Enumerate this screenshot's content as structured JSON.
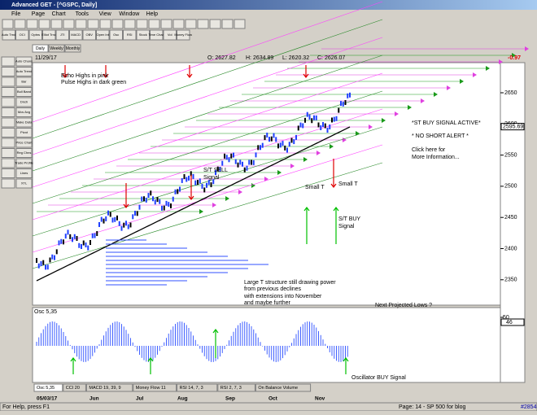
{
  "window": {
    "title": "Advanced GET - [^GSPC, Daily]"
  },
  "menu": [
    "File",
    "Page",
    "Chart",
    "Tools",
    "View",
    "Window",
    "Help"
  ],
  "toolbar": [
    "Auto Trnd",
    "OCI",
    "Optns",
    "Elliot Trnd",
    "JTI",
    "MACD",
    "OBV",
    "Open Int",
    "Osc",
    "RSI",
    "Stock",
    "Time Chart",
    "Vol",
    "Money Flow"
  ],
  "sidebar": [
    "Auto Chans",
    "Auto Trend",
    "Bar",
    "Bull Band",
    "Dnch",
    "Mov Avg",
    "Make Data",
    "Pivot",
    "Price Chart",
    "Reg Chns",
    "Trade Profile",
    "Lines",
    "XTL"
  ],
  "period_tabs": [
    "Daily",
    "Weekly",
    "Monthly"
  ],
  "header": {
    "date": "11/29/17",
    "open": "O: 2627.82",
    "high": "H: 2634.89",
    "low": "L: 2620.32",
    "close": "C: 2626.07",
    "change": "-0.97"
  },
  "price_axis": {
    "ticks": [
      2650,
      2600,
      2550,
      2500,
      2450,
      2400,
      2350
    ],
    "last": 2595.69
  },
  "annotations": {
    "echo": "Echo Highs in pink",
    "pulse": "Pulse Highs in dark green",
    "st_buy_active": "*ST BUY SIGNAL ACTIVE*",
    "no_short": "* NO SHORT ALERT *",
    "click": "Click here for",
    "more": "More Information...",
    "sell1": "S/T SELL",
    "sell2": "Signal",
    "small_t1": "Small  T",
    "small_t2": "Small T",
    "buy1": "S/T BUY",
    "buy2": "Signal",
    "large1": "Large T structure still drawing power",
    "large2": "from previous declines",
    "large3": "with extensions into November",
    "large4": "and maybe further",
    "next_lows": "Next Projected Lows ?",
    "osc_buy": "Oscillator BUY Signal"
  },
  "oscillator": {
    "title": "Osc 5,35",
    "ticks": [
      50
    ],
    "last": 46
  },
  "indicator_tabs": [
    "Osc 5,35",
    "CCI 20",
    "MACD 19, 39, 9",
    "Money Flow 11",
    "RSI 14, 7, 3",
    "RSI 2, 7, 3",
    "On Balance Volume"
  ],
  "dates": [
    "05/03/17",
    "Jun",
    "Jul",
    "Aug",
    "Sep",
    "Oct",
    "Nov"
  ],
  "status": {
    "help": "For Help, press F1",
    "page": "Page: 14 - SP 500 for blog",
    "count": "#2854"
  }
}
